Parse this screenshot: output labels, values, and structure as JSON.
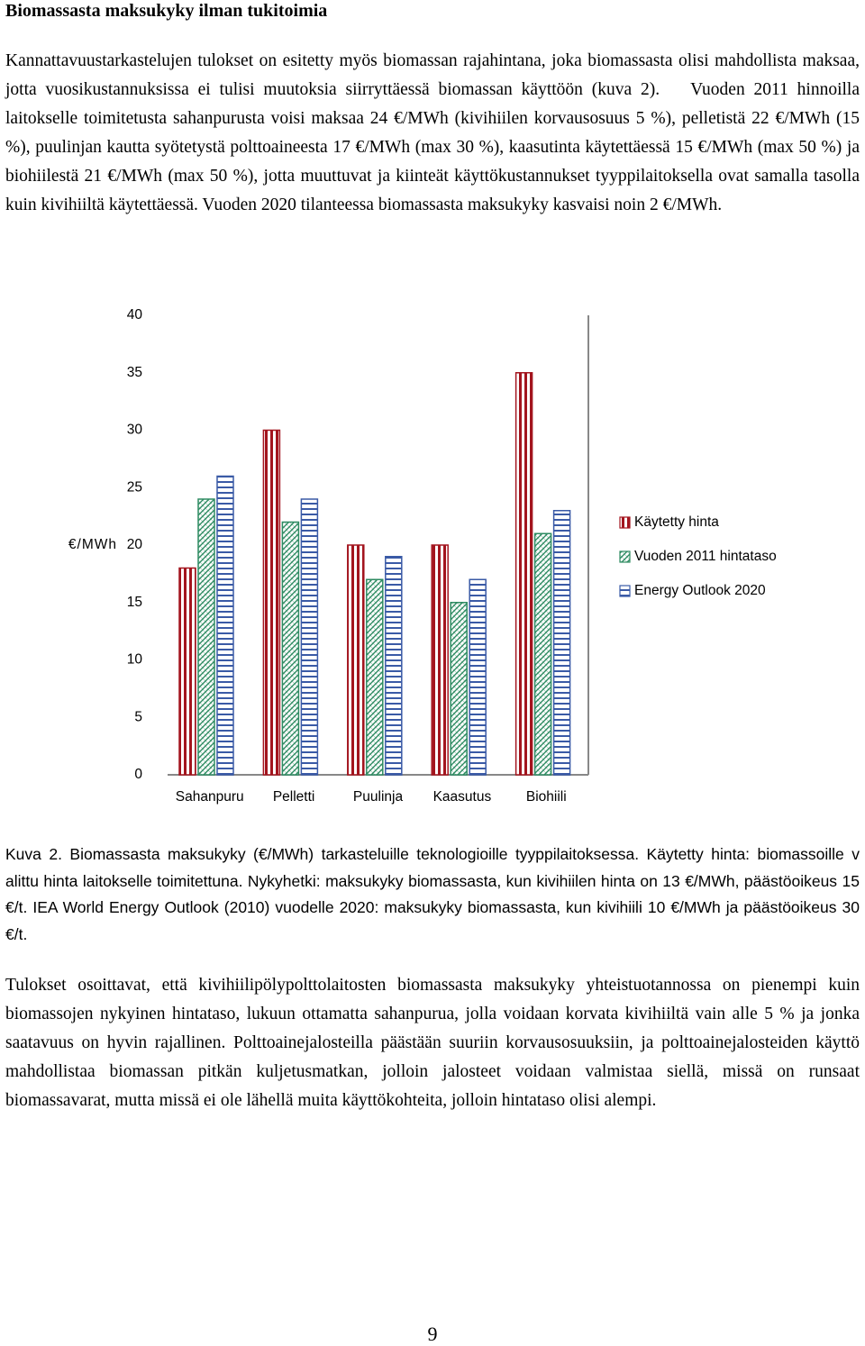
{
  "heading": "Biomassasta maksukyky ilman tukitoimia",
  "paragraph1": [
    "Kannattavuustarkastelujen tulokset on esitetty myös biomassan rajahintana, joka biomassasta olisi mahdollista maksaa, jotta vuosikustannuksissa ei tulisi muutoksia siirryttäessä biomassan käyttöön (kuva 2).",
    "Vuoden 2011 hinnoilla laitokselle toimitetusta sahanpurusta voisi maksaa 24 €/MWh (kivihiilen korvausosuus 5 %), pelletistä 22 €/MWh (15 %), puulinjan kautta syötetystä polttoaineesta 17 €/MWh (max 30 %), kaasutinta käytettäessä 15 €/MWh (max 50 %) ja biohiilestä 21 €/MWh (max 50 %), jotta muuttuvat ja kiinteät käyttökustannukset tyyppilaitoksella ovat samalla tasolla kuin kivihiiltä käytettäessä. Vuoden 2020 tilanteessa biomassasta maksukyky kasvaisi noin 2 €/MWh."
  ],
  "chart_data": {
    "type": "bar",
    "y_label": "€/MWh",
    "categories": [
      "Sahanpuru",
      "Pelletti",
      "Puulinja",
      "Kaasutus",
      "Biohiili"
    ],
    "series": [
      {
        "name": "Käytetty hinta",
        "color": "#a3151e",
        "hatch": "vertical",
        "values": [
          18,
          30,
          20,
          20,
          35
        ]
      },
      {
        "name": "Vuoden 2011 hintataso",
        "color": "#2e8b62",
        "hatch": "diagonal-cross",
        "values": [
          24,
          22,
          17,
          15,
          21
        ]
      },
      {
        "name": "Energy Outlook 2020",
        "color": "#3a5aa6",
        "hatch": "horizontal",
        "values": [
          26,
          24,
          19,
          17,
          23
        ]
      }
    ],
    "ylim": [
      0,
      40
    ],
    "yticks": [
      0,
      5,
      10,
      15,
      20,
      25,
      30,
      35,
      40
    ],
    "grid": false,
    "legend": "right"
  },
  "caption": "Kuva 2. Biomassasta maksukyky (€/MWh) tarkasteluille teknologioille tyyppilaitoksessa. Käytetty hinta: biomassoille v alittu hinta laitokselle toimitettuna. Nykyhetki: maksukyky biomassasta, kun kivihiilen hinta on 13 €/MWh, päästöoikeus 15 €/t. IEA World Energy Outlook (2010) vuodelle 2020: maksukyky biomassasta, kun kivihiili 10 €/MWh ja päästöoikeus 30 €/t.",
  "paragraph2": "Tulokset osoittavat, että kivihiilipölypolttolaitosten biomassasta maksukyky yhteistuotannossa on pienempi kuin biomassojen nykyinen hintataso, lukuun ottamatta sahanpurua, jolla voidaan korvata kivihiiltä vain alle 5 % ja jonka saatavuus on hyvin rajallinen. Polttoainejalosteilla päästään suuriin korvausosuuksiin, ja polttoainejalosteiden käyttö mahdollistaa biomassan pitkän kuljetusmatkan, jolloin jalosteet voidaan valmistaa siellä, missä on runsaat biomassavarat, mutta missä ei ole lähellä muita käyttökohteita, jolloin hintataso olisi alempi.",
  "page_number": "9"
}
